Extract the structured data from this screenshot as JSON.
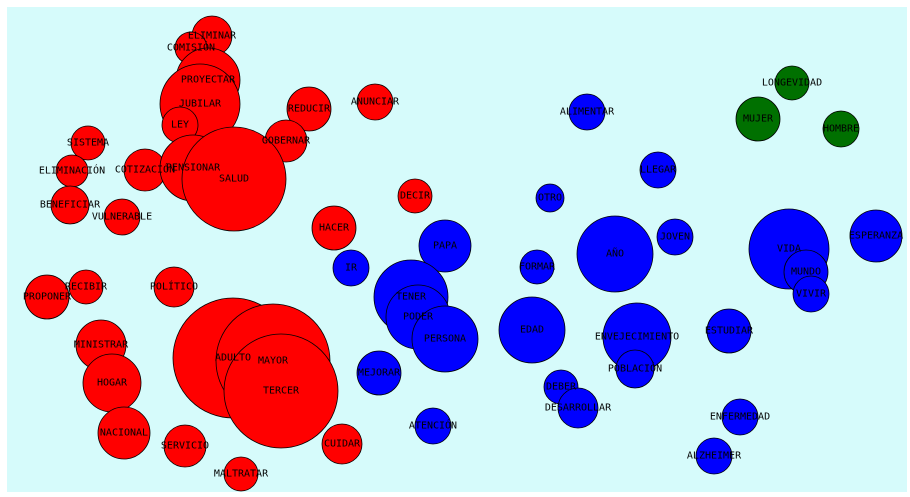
{
  "chart_data": {
    "type": "bubble",
    "colors": {
      "red": "#ff0000",
      "blue": "#0000ff",
      "green": "#007000",
      "background": "#d6fbfb"
    },
    "nodes": [
      {
        "label": "ELIMINAR",
        "group": "red"
      },
      {
        "label": "COMISIÓN",
        "group": "red"
      },
      {
        "label": "PROYECTAR",
        "group": "red"
      },
      {
        "label": "JUBILAR",
        "group": "red"
      },
      {
        "label": "LEY",
        "group": "red"
      },
      {
        "label": "REDUCIR",
        "group": "red"
      },
      {
        "label": "ANUNCIAR",
        "group": "red"
      },
      {
        "label": "GOBERNAR",
        "group": "red"
      },
      {
        "label": "SISTEMA",
        "group": "red"
      },
      {
        "label": "ELIMINACIÓN",
        "group": "red"
      },
      {
        "label": "COTIZACIÓN",
        "group": "red"
      },
      {
        "label": "PENSIONAR",
        "group": "red"
      },
      {
        "label": "SALUD",
        "group": "red"
      },
      {
        "label": "BENEFICIAR",
        "group": "red"
      },
      {
        "label": "VULNERABLE",
        "group": "red"
      },
      {
        "label": "DECIR",
        "group": "red"
      },
      {
        "label": "HACER",
        "group": "red"
      },
      {
        "label": "RECIBIR",
        "group": "red"
      },
      {
        "label": "PROPONER",
        "group": "red"
      },
      {
        "label": "POLÍTICO",
        "group": "red"
      },
      {
        "label": "MINISTRAR",
        "group": "red"
      },
      {
        "label": "HOGAR",
        "group": "red"
      },
      {
        "label": "ADULTO",
        "group": "red"
      },
      {
        "label": "MAYOR",
        "group": "red"
      },
      {
        "label": "TERCER",
        "group": "red"
      },
      {
        "label": "NACIONAL",
        "group": "red"
      },
      {
        "label": "SERVICIO",
        "group": "red"
      },
      {
        "label": "CUIDAR",
        "group": "red"
      },
      {
        "label": "MALTRATAR",
        "group": "red"
      },
      {
        "label": "IR",
        "group": "blue"
      },
      {
        "label": "PAPA",
        "group": "blue"
      },
      {
        "label": "TENER",
        "group": "blue"
      },
      {
        "label": "PODER",
        "group": "blue"
      },
      {
        "label": "PERSONA",
        "group": "blue"
      },
      {
        "label": "MEJORAR",
        "group": "blue"
      },
      {
        "label": "ATENCIÓN",
        "group": "blue"
      },
      {
        "label": "ALIMENTAR",
        "group": "blue"
      },
      {
        "label": "OTRO",
        "group": "blue"
      },
      {
        "label": "LLEGAR",
        "group": "blue"
      },
      {
        "label": "FORMAR",
        "group": "blue"
      },
      {
        "label": "AÑO",
        "group": "blue"
      },
      {
        "label": "JOVEN",
        "group": "blue"
      },
      {
        "label": "EDAD",
        "group": "blue"
      },
      {
        "label": "ENVEJECIMIENTO",
        "group": "blue"
      },
      {
        "label": "POBLACIÓN",
        "group": "blue"
      },
      {
        "label": "DEBER",
        "group": "blue"
      },
      {
        "label": "DESARROLLAR",
        "group": "blue"
      },
      {
        "label": "ESTUDIAR",
        "group": "blue"
      },
      {
        "label": "VIDA",
        "group": "blue"
      },
      {
        "label": "MUNDO",
        "group": "blue"
      },
      {
        "label": "VIVIR",
        "group": "blue"
      },
      {
        "label": "ESPERANZA",
        "group": "blue"
      },
      {
        "label": "ENFERMEDAD",
        "group": "blue"
      },
      {
        "label": "ALZHEIMER",
        "group": "blue"
      },
      {
        "label": "LONGEVIDAD",
        "group": "green"
      },
      {
        "label": "MUJER",
        "group": "green"
      },
      {
        "label": "HOMBRE",
        "group": "green"
      }
    ]
  }
}
